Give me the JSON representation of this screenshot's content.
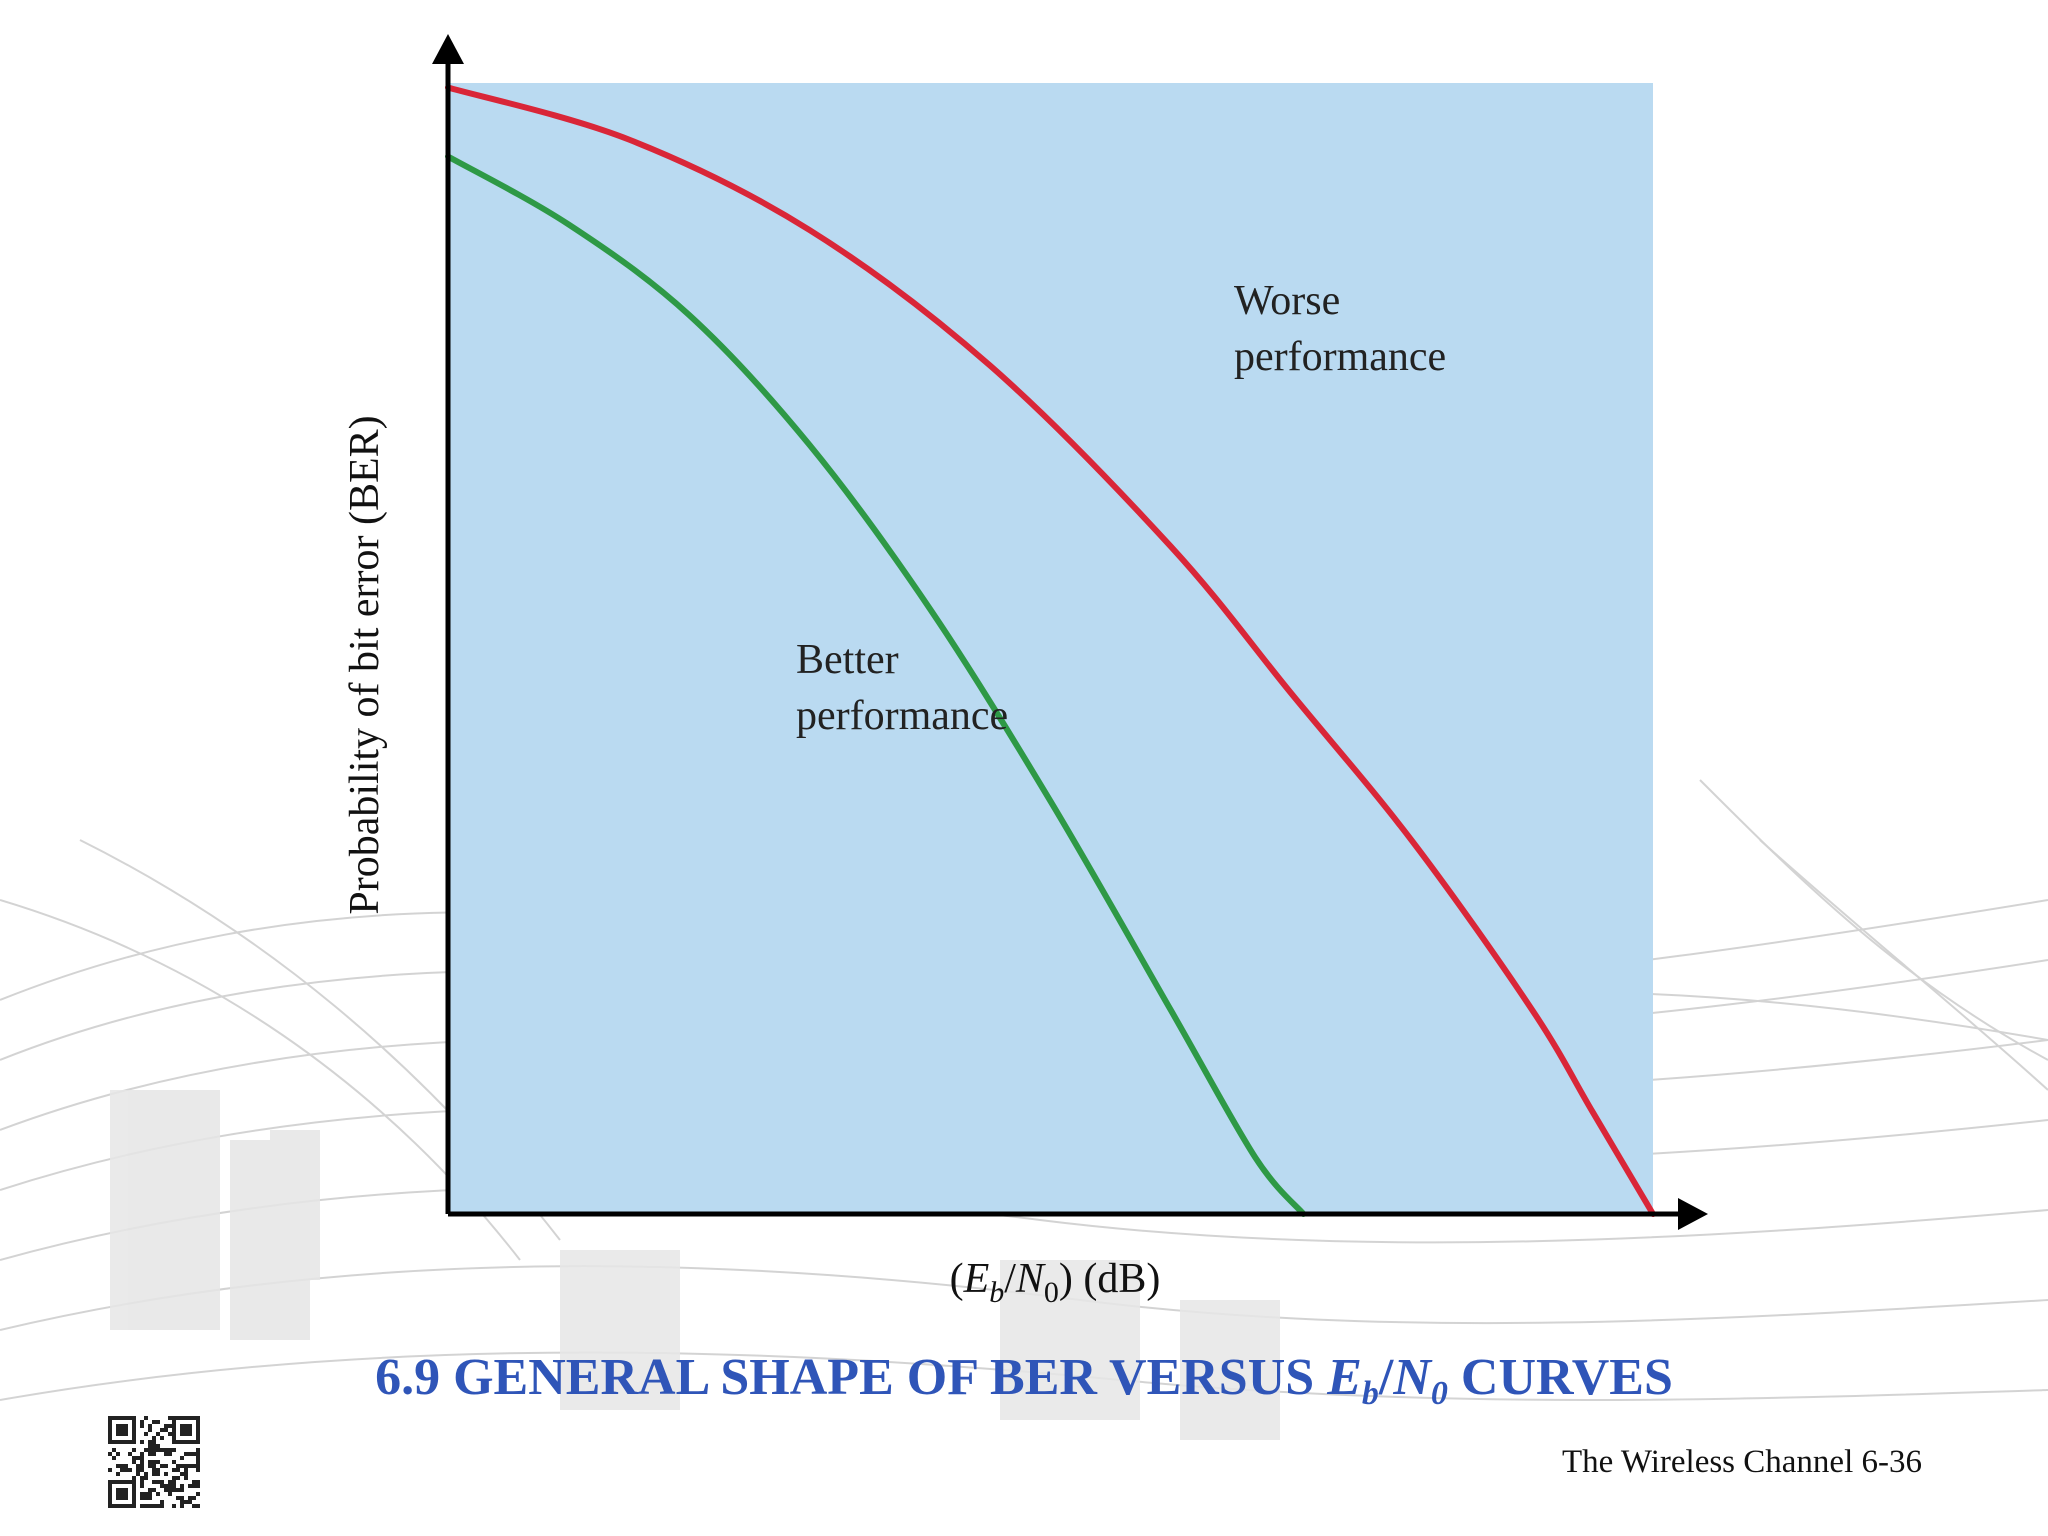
{
  "slide": {
    "title_prefix": "6.9 GENERAL SHAPE OF BER VERSUS ",
    "title_var_e": "E",
    "title_sub_b": "b",
    "title_slash": "/",
    "title_var_n": "N",
    "title_sub_0": "0",
    "title_suffix": " CURVES",
    "footer": "The Wireless Channel 6-36",
    "qr_icon": "qr-code-icon"
  },
  "chart_data": {
    "type": "line",
    "title": "",
    "xlabel": {
      "open": "(",
      "e": "E",
      "b": "b",
      "slash": "/",
      "n": "N",
      "zero": "0",
      "close": ") (dB)"
    },
    "ylabel": "Probability of bit error (BER)",
    "xlim": [
      0,
      1
    ],
    "ylim": [
      0,
      1
    ],
    "ticks": "none",
    "grid": false,
    "series": [
      {
        "label_lines": [
          "Worse",
          "performance"
        ],
        "color": "#d92638",
        "points": [
          [
            0,
            0.996
          ],
          [
            0.15,
            0.95
          ],
          [
            0.3,
            0.87
          ],
          [
            0.45,
            0.75
          ],
          [
            0.6,
            0.59
          ],
          [
            0.7,
            0.46
          ],
          [
            0.8,
            0.33
          ],
          [
            0.9,
            0.18
          ],
          [
            0.95,
            0.09
          ],
          [
            1.0,
            0.0
          ]
        ]
      },
      {
        "label_lines": [
          "Better",
          "performance"
        ],
        "color": "#2e9946",
        "points": [
          [
            0,
            0.935
          ],
          [
            0.1,
            0.875
          ],
          [
            0.2,
            0.795
          ],
          [
            0.3,
            0.68
          ],
          [
            0.4,
            0.535
          ],
          [
            0.5,
            0.365
          ],
          [
            0.6,
            0.18
          ],
          [
            0.67,
            0.05
          ],
          [
            0.71,
            0.0
          ]
        ]
      }
    ],
    "plot_background": "#badaf1",
    "axis_color": "#000000"
  }
}
